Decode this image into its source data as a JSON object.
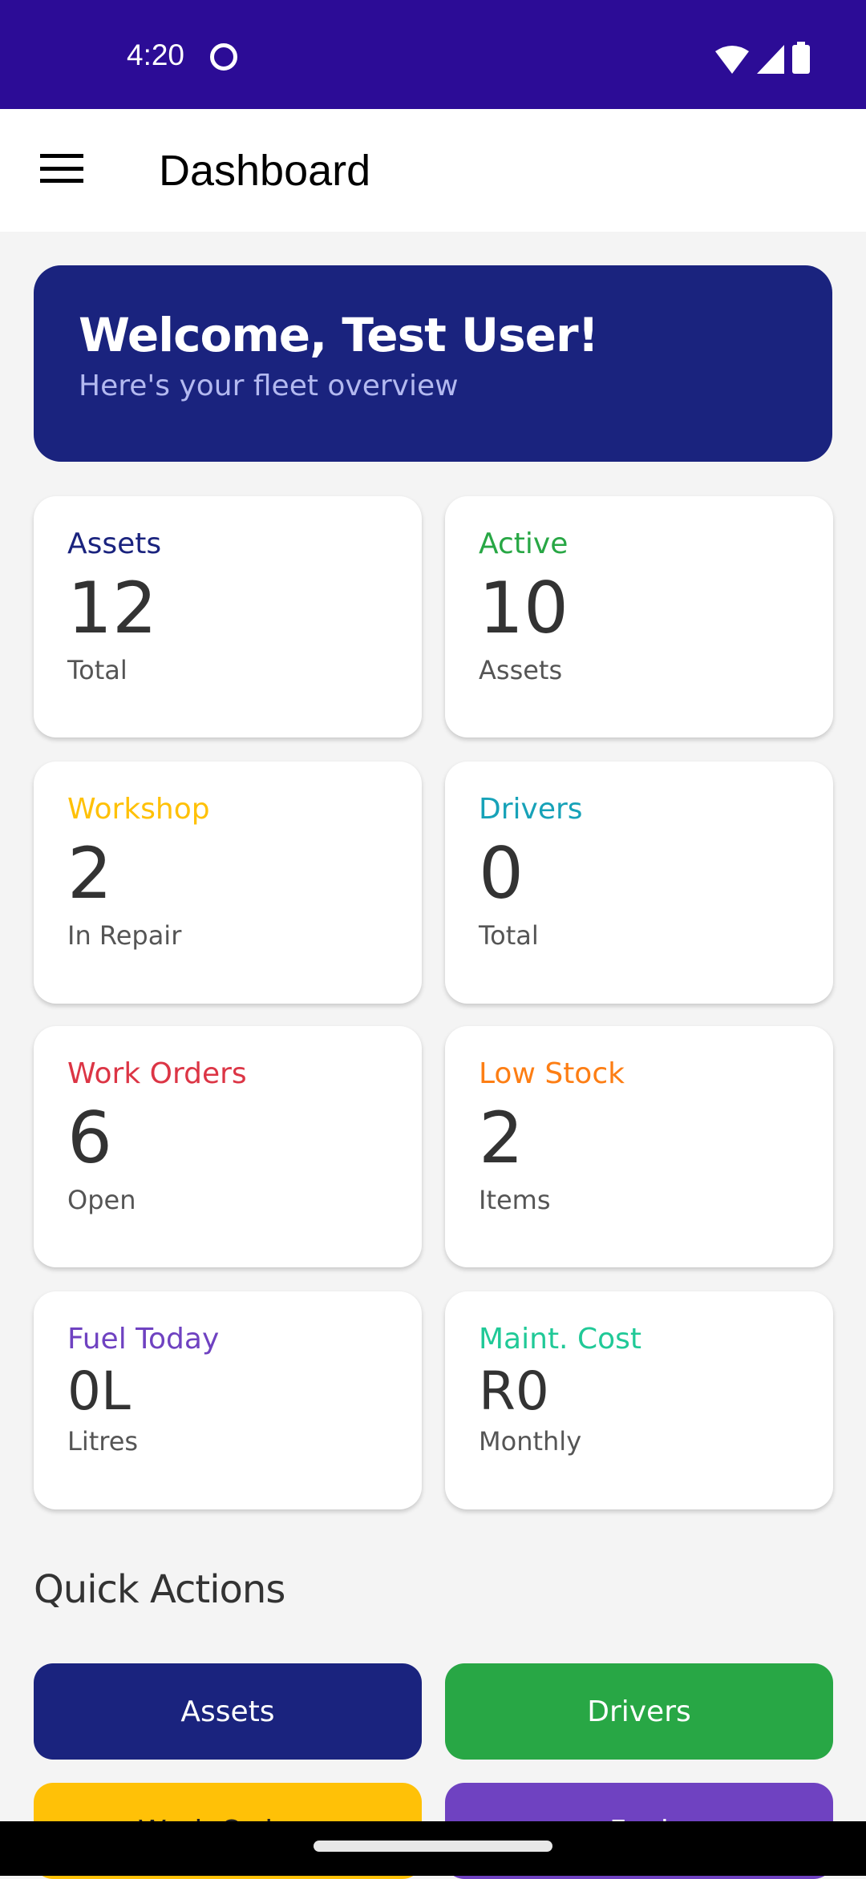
{
  "status_bar": {
    "time": "4:20",
    "icons": [
      "debug-icon",
      "wifi-icon",
      "signal-icon",
      "battery-icon"
    ]
  },
  "app_bar": {
    "title": "Dashboard",
    "menu_icon": "hamburger-icon"
  },
  "welcome": {
    "title": "Welcome, Test User!",
    "subtitle": "Here's your fleet overview",
    "color": "#1a237e"
  },
  "stats": [
    {
      "label": "Assets",
      "value": "12",
      "sub": "Total",
      "color": "#1a237e"
    },
    {
      "label": "Active",
      "value": "10",
      "sub": "Assets",
      "color": "#28a745"
    },
    {
      "label": "Workshop",
      "value": "2",
      "sub": "In Repair",
      "color": "#ffc107"
    },
    {
      "label": "Drivers",
      "value": "0",
      "sub": "Total",
      "color": "#17a2b8"
    },
    {
      "label": "Work Orders",
      "value": "6",
      "sub": "Open",
      "color": "#dc3545"
    },
    {
      "label": "Low Stock",
      "value": "2",
      "sub": "Items",
      "color": "#fd7e14"
    },
    {
      "label": "Fuel Today",
      "value": "0L",
      "sub": "Litres",
      "color": "#6f42c1"
    },
    {
      "label": "Maint. Cost",
      "value": "R0",
      "sub": "Monthly",
      "color": "#20c997"
    }
  ],
  "quick_actions": {
    "title": "Quick Actions",
    "buttons": [
      {
        "label": "Assets",
        "color": "#1a237e"
      },
      {
        "label": "Drivers",
        "color": "#28a745"
      },
      {
        "label": "Work Orders",
        "color": "#ffc107"
      },
      {
        "label": "Fuel",
        "color": "#6f42c1"
      }
    ]
  }
}
